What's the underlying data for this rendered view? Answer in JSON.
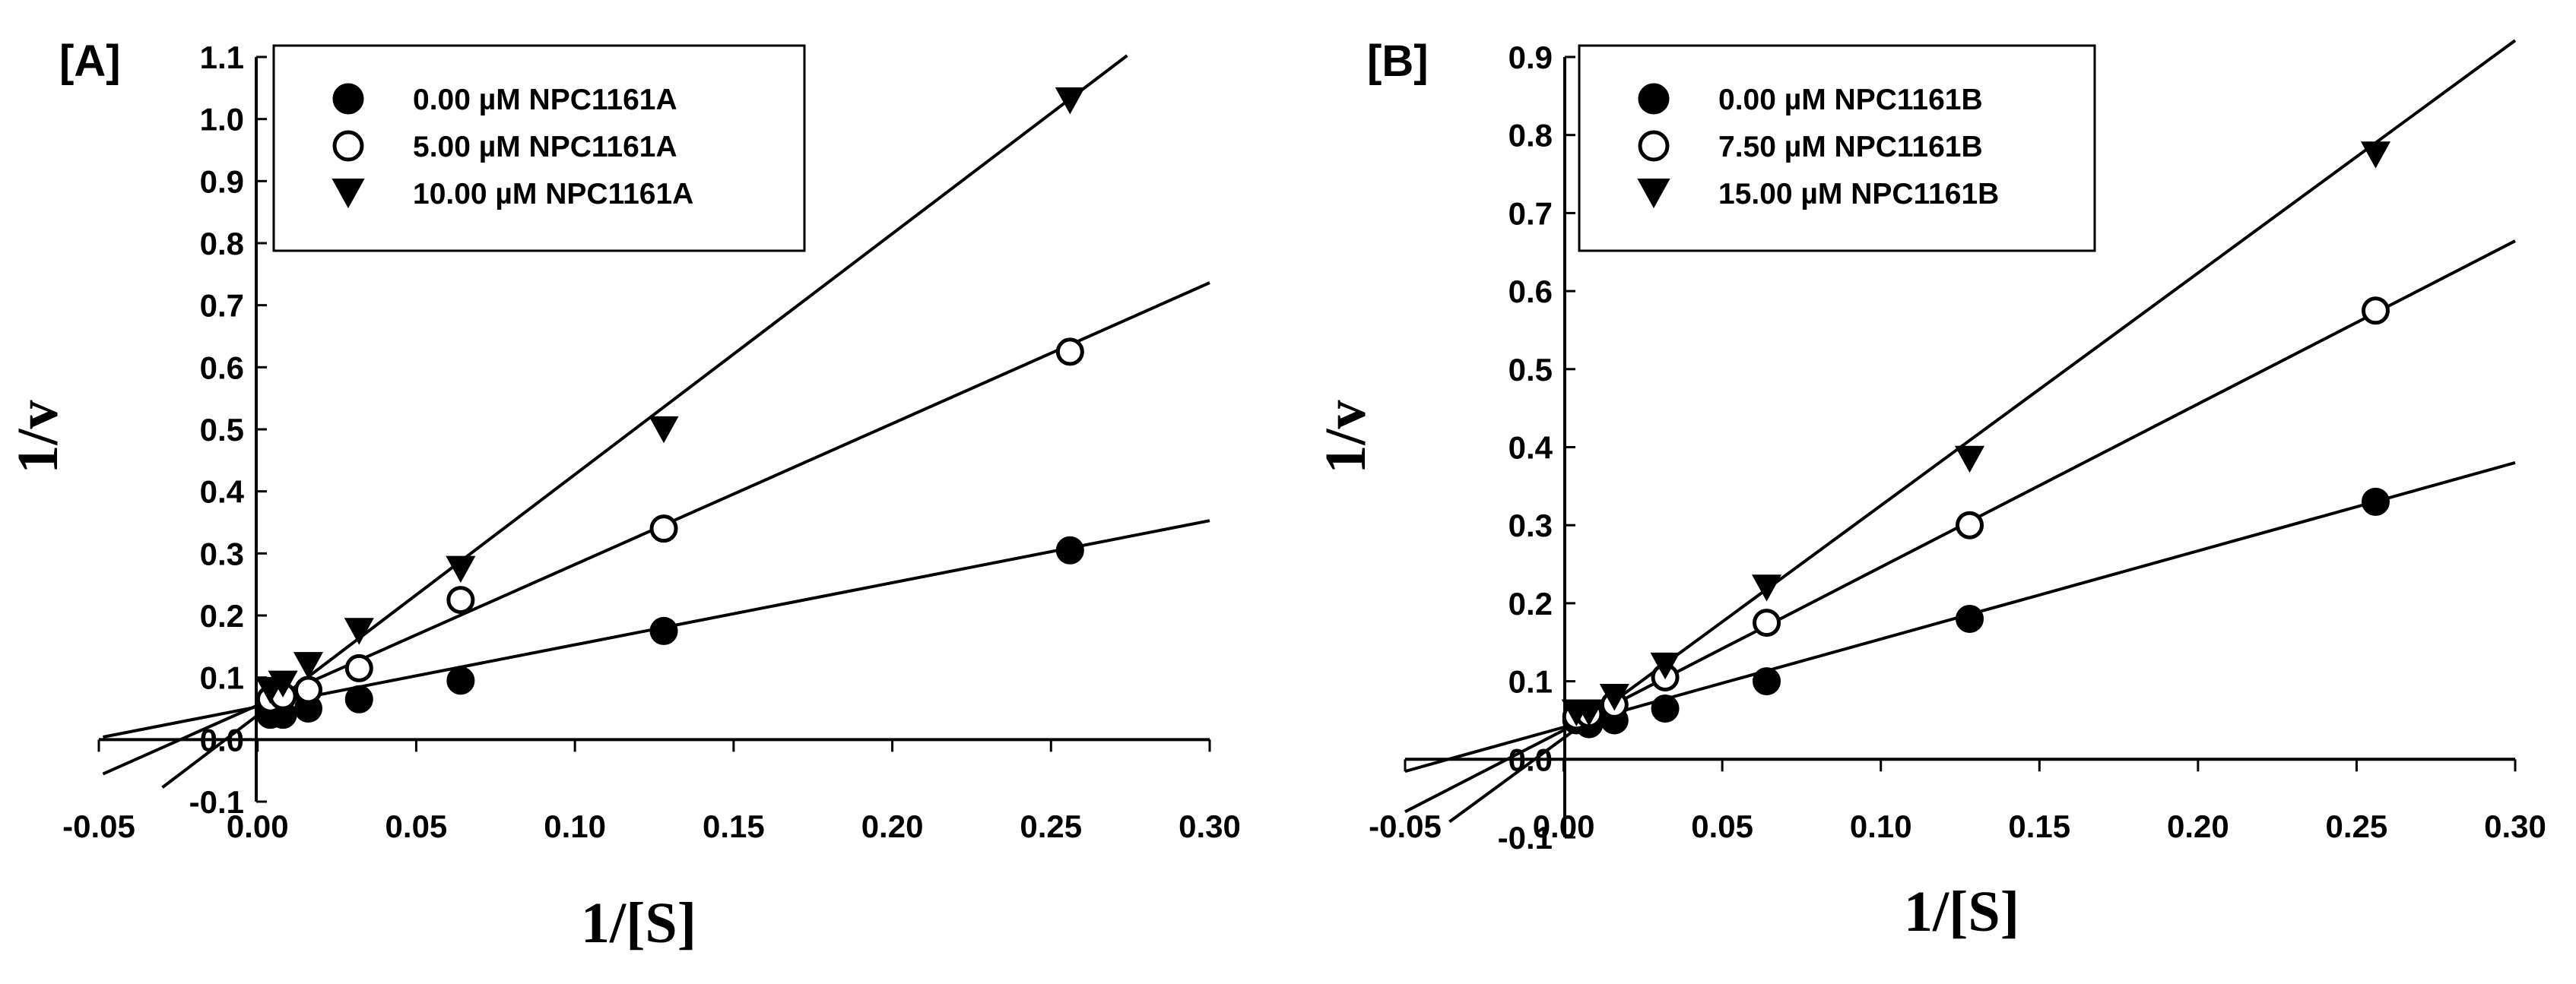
{
  "chart_data": [
    {
      "type": "scatter",
      "panel_label": "[A]",
      "title": "",
      "xlabel": "1/[S]",
      "ylabel": "1/v",
      "xlim": [
        -0.05,
        0.3
      ],
      "ylim": [
        -0.1,
        1.1
      ],
      "x_ticks": [
        -0.05,
        0.0,
        0.05,
        0.1,
        0.15,
        0.2,
        0.25,
        0.3
      ],
      "x_tick_labels": [
        "-0.05",
        "0.00",
        "0.05",
        "0.10",
        "0.15",
        "0.20",
        "0.25",
        "0.30"
      ],
      "y_ticks": [
        -0.1,
        0.0,
        0.1,
        0.2,
        0.3,
        0.4,
        0.5,
        0.6,
        0.7,
        0.8,
        0.9,
        1.0,
        1.1
      ],
      "y_tick_labels": [
        "-0.1",
        "0.0",
        "0.1",
        "0.2",
        "0.3",
        "0.4",
        "0.5",
        "0.6",
        "0.7",
        "0.8",
        "0.9",
        "1.0",
        "1.1"
      ],
      "legend_position": "top-left",
      "grid": false,
      "series": [
        {
          "name": "0.00 µM NPC1161A",
          "marker": "filled-circle",
          "x": [
            0.004,
            0.008,
            0.016,
            0.032,
            0.064,
            0.128,
            0.256
          ],
          "y": [
            0.04,
            0.04,
            0.05,
            0.065,
            0.095,
            0.175,
            0.305
          ],
          "fit": {
            "x_from": -0.0487,
            "x_to": 0.3,
            "slope": 1.0,
            "intercept": 0.0528
          }
        },
        {
          "name": "5.00 µM NPC1161A",
          "marker": "open-circle",
          "x": [
            0.004,
            0.008,
            0.016,
            0.032,
            0.064,
            0.128,
            0.256
          ],
          "y": [
            0.065,
            0.07,
            0.08,
            0.115,
            0.225,
            0.34,
            0.625
          ],
          "fit": {
            "x_from": -0.0487,
            "x_to": 0.3,
            "slope": 2.27,
            "intercept": 0.0552
          }
        },
        {
          "name": "10.00 µM NPC1161A",
          "marker": "filled-triangle-down",
          "x": [
            0.004,
            0.008,
            0.016,
            0.032,
            0.064,
            0.128,
            0.256
          ],
          "y": [
            0.08,
            0.09,
            0.12,
            0.175,
            0.275,
            0.5,
            1.03
          ],
          "fit": {
            "x_from": -0.03,
            "x_to": 0.274,
            "slope": 3.88,
            "intercept": 0.0392
          }
        }
      ]
    },
    {
      "type": "scatter",
      "panel_label": "[B]",
      "title": "",
      "xlabel": "1/[S]",
      "ylabel": "1/v",
      "xlim": [
        -0.05,
        0.3
      ],
      "ylim": [
        -0.1,
        0.9
      ],
      "x_ticks": [
        -0.05,
        0.0,
        0.05,
        0.1,
        0.15,
        0.2,
        0.25,
        0.3
      ],
      "x_tick_labels": [
        "-0.05",
        "0.00",
        "0.05",
        "0.10",
        "0.15",
        "0.20",
        "0.25",
        "0.30"
      ],
      "y_ticks": [
        -0.1,
        0.0,
        0.1,
        0.2,
        0.3,
        0.4,
        0.5,
        0.6,
        0.7,
        0.8,
        0.9
      ],
      "y_tick_labels": [
        "-0.1",
        "0.0",
        "0.1",
        "0.2",
        "0.3",
        "0.4",
        "0.5",
        "0.6",
        "0.7",
        "0.8",
        "0.9"
      ],
      "legend_position": "top-left",
      "grid": false,
      "series": [
        {
          "name": "0.00 µM NPC1161B",
          "marker": "filled-circle",
          "x": [
            0.004,
            0.008,
            0.016,
            0.032,
            0.064,
            0.128,
            0.256
          ],
          "y": [
            0.05,
            0.045,
            0.05,
            0.065,
            0.1,
            0.18,
            0.33
          ],
          "fit": {
            "x_from": -0.05,
            "x_to": 0.3,
            "slope": 1.13,
            "intercept": 0.0411
          }
        },
        {
          "name": "7.50 µM NPC1161B",
          "marker": "open-circle",
          "x": [
            0.004,
            0.008,
            0.016,
            0.032,
            0.064,
            0.128,
            0.256
          ],
          "y": [
            0.055,
            0.058,
            0.07,
            0.105,
            0.175,
            0.3,
            0.575
          ],
          "fit": {
            "x_from": -0.05,
            "x_to": 0.3,
            "slope": 2.09,
            "intercept": 0.0373
          }
        },
        {
          "name": "15.00 µM NPC1161B",
          "marker": "filled-triangle-down",
          "x": [
            0.004,
            0.008,
            0.016,
            0.032,
            0.064,
            0.128,
            0.256
          ],
          "y": [
            0.06,
            0.06,
            0.08,
            0.12,
            0.22,
            0.385,
            0.775
          ],
          "fit": {
            "x_from": -0.036,
            "x_to": 0.3,
            "slope": 2.98,
            "intercept": 0.0272
          }
        }
      ]
    }
  ]
}
